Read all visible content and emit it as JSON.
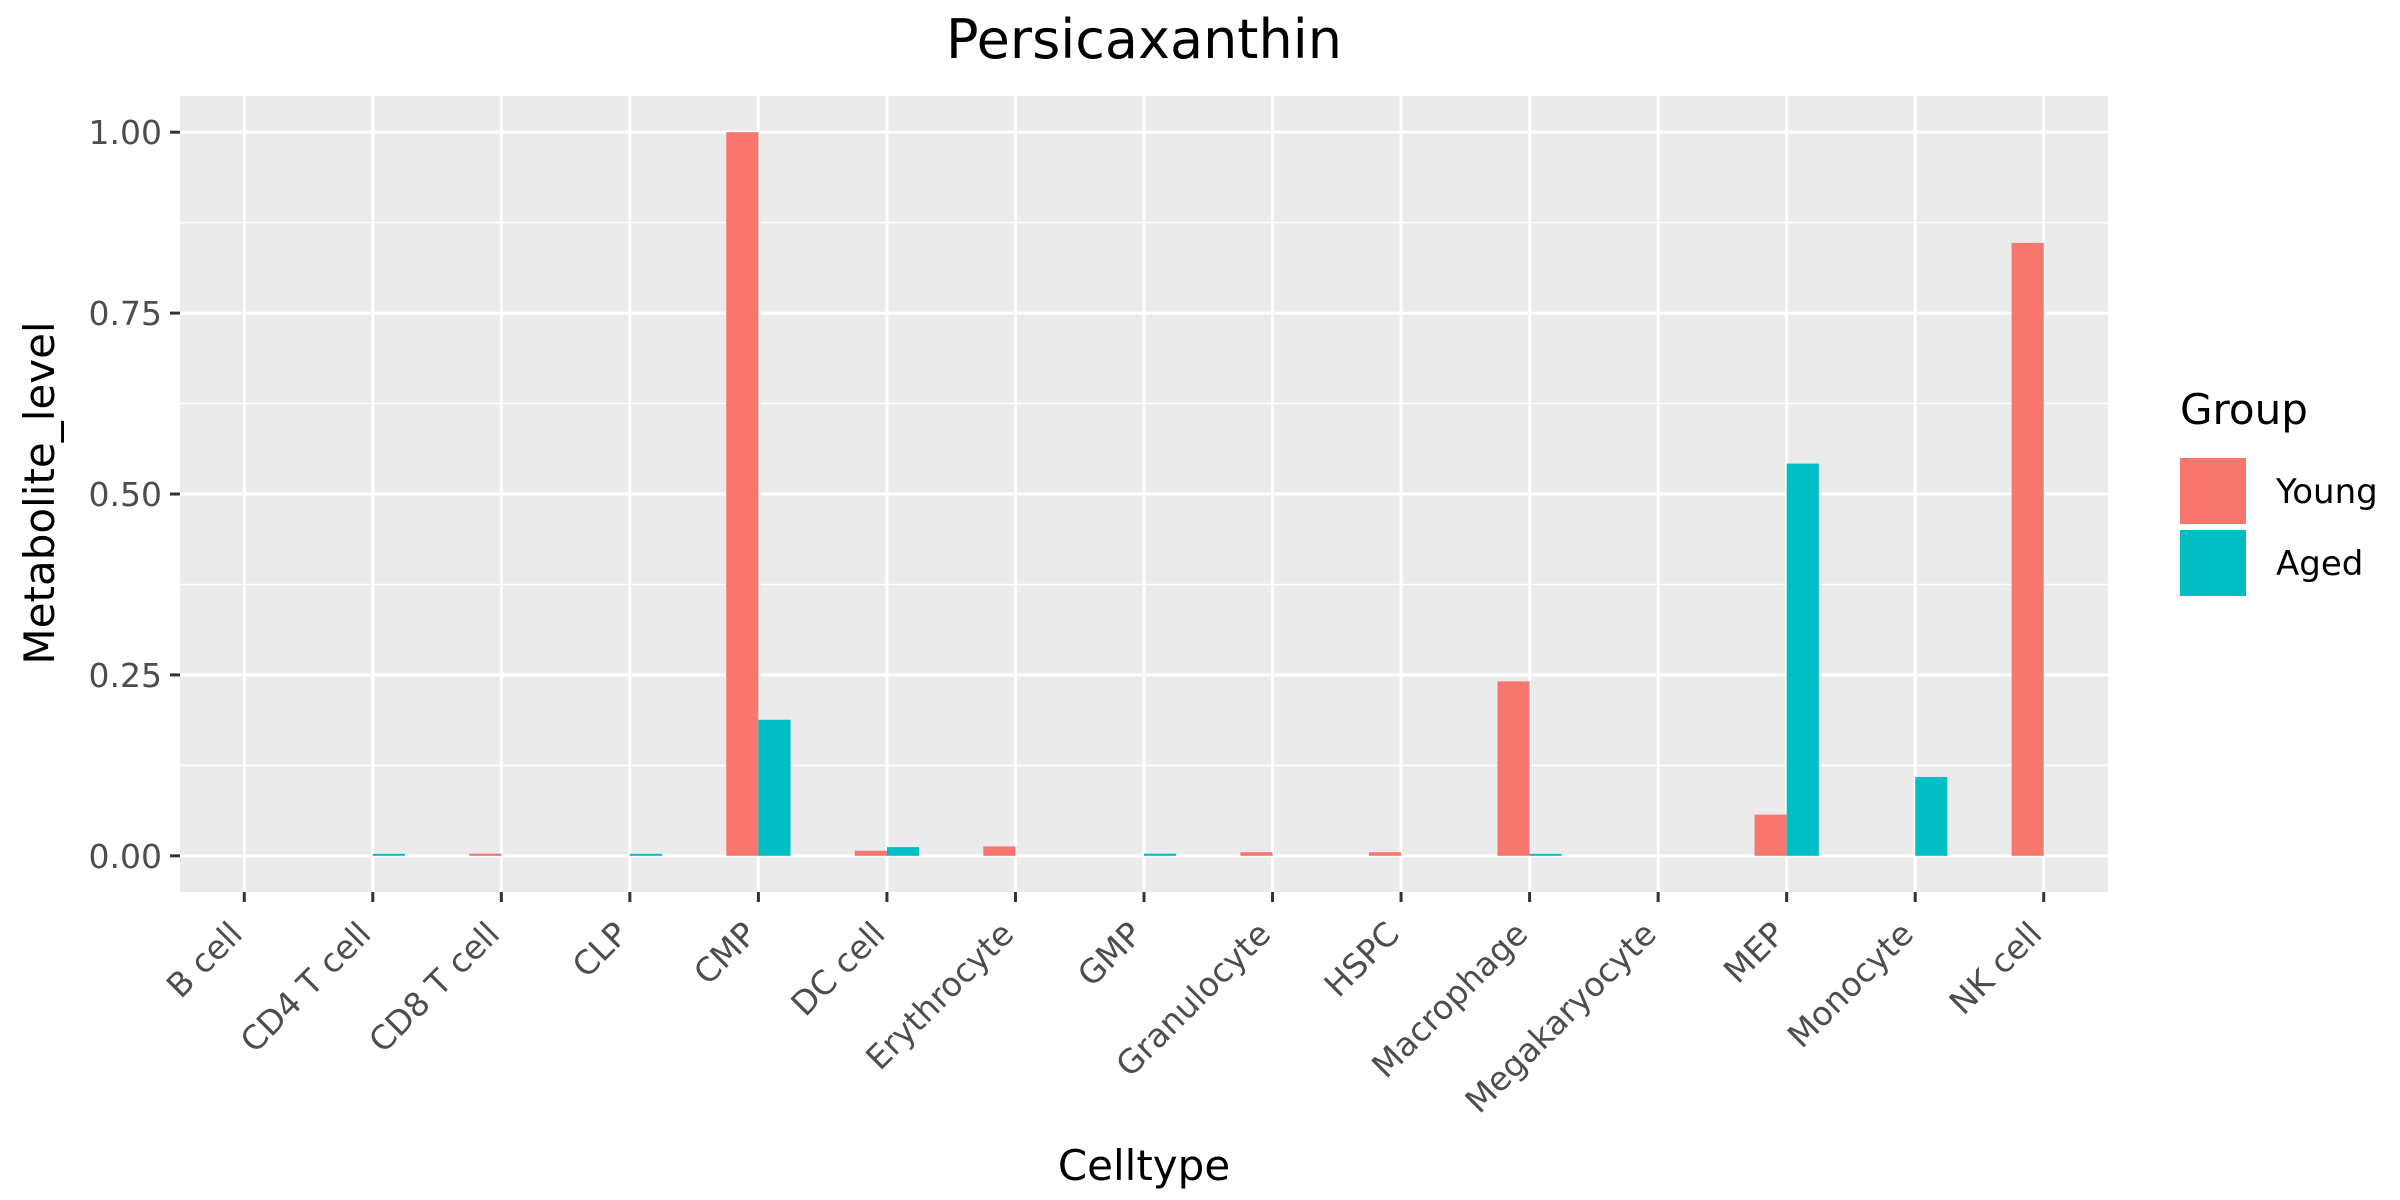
{
  "chart_data": {
    "type": "bar",
    "title": "Persicaxanthin",
    "xlabel": "Celltype",
    "ylabel": "Metabolite_level",
    "categories": [
      "B cell",
      "CD4 T cell",
      "CD8 T cell",
      "CLP",
      "CMP",
      "DC cell",
      "Erythrocyte",
      "GMP",
      "Granulocyte",
      "HSPC",
      "Macrophage",
      "Megakaryocyte",
      "MEP",
      "Monocyte",
      "NK cell"
    ],
    "series": [
      {
        "name": "Young",
        "color": "#F8766D",
        "values": [
          0,
          0,
          0.003,
          0,
          1.0,
          0.007,
          0.013,
          0,
          0.005,
          0.005,
          0.241,
          0,
          0.057,
          0,
          0.847
        ]
      },
      {
        "name": "Aged",
        "color": "#00BFC4",
        "values": [
          0,
          0.002,
          0,
          0.002,
          0.188,
          0.012,
          0,
          0.003,
          0,
          0,
          0.002,
          0,
          0.542,
          0.109,
          0
        ]
      }
    ],
    "ylim": [
      -0.05,
      1.05
    ],
    "yticks": [
      0.0,
      0.25,
      0.5,
      0.75,
      1.0
    ],
    "ytick_labels": [
      "0.00",
      "0.25",
      "0.50",
      "0.75",
      "1.00"
    ],
    "legend": {
      "title": "Group",
      "position": "right"
    },
    "grid": true,
    "panel_background": "#EBEBEB"
  }
}
